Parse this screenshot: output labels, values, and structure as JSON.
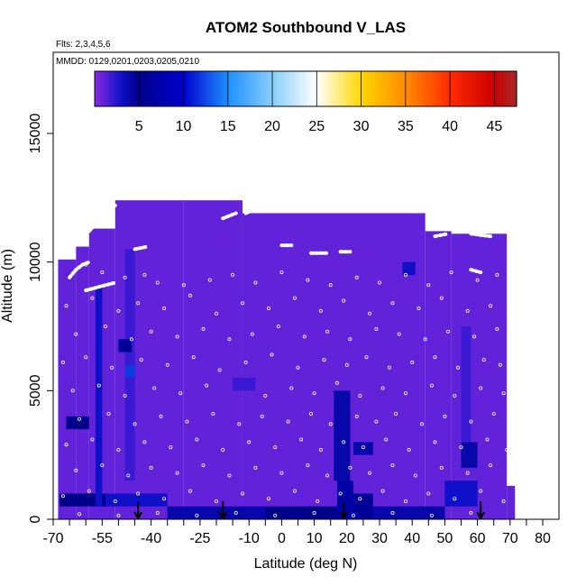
{
  "chart_data": {
    "type": "heatmap",
    "title": "ATOM2 Southbound V_LAS",
    "flights_note": "Flts: 2,3,4,5,6",
    "dates_note": "MMDD: 0129,0201,0203,0205,0210",
    "xlabel": "Latitude (deg N)",
    "ylabel": "Altitude (m)",
    "xlim": [
      -70,
      80
    ],
    "ylim": [
      0,
      18000
    ],
    "x_tick_labels": [
      "-70",
      "-55",
      "-40",
      "-25",
      "-10",
      "0",
      "10",
      "20",
      "30",
      "40",
      "50",
      "60",
      "70",
      "80"
    ],
    "x_tick_values": [
      -70,
      -55,
      -40,
      -25,
      -10,
      0,
      10,
      20,
      30,
      40,
      50,
      60,
      70,
      80
    ],
    "y_tick_labels": [
      "0",
      "5000",
      "10000",
      "15000"
    ],
    "y_tick_values": [
      0,
      5000,
      10000,
      15000
    ],
    "colorbar": {
      "range": [
        0,
        47.5
      ],
      "tick_labels": [
        "5",
        "10",
        "15",
        "20",
        "25",
        "30",
        "35",
        "40",
        "45"
      ],
      "tick_values": [
        5,
        10,
        15,
        20,
        25,
        30,
        35,
        40,
        45
      ],
      "stops": [
        {
          "v": 0,
          "color": "#8a2be2"
        },
        {
          "v": 3,
          "color": "#1010c8"
        },
        {
          "v": 5,
          "color": "#00008b"
        },
        {
          "v": 10,
          "color": "#0000cd"
        },
        {
          "v": 15,
          "color": "#1e90ff"
        },
        {
          "v": 20,
          "color": "#87cefa"
        },
        {
          "v": 25,
          "color": "#ffffff"
        },
        {
          "v": 30,
          "color": "#ffd700"
        },
        {
          "v": 35,
          "color": "#ff8c00"
        },
        {
          "v": 40,
          "color": "#ff2a00"
        },
        {
          "v": 45,
          "color": "#cc0000"
        },
        {
          "v": 47.5,
          "color": "#a52a2a"
        }
      ]
    },
    "background_value": 1,
    "coverage_segments": [
      {
        "x0": -68.5,
        "x1": -63,
        "y_top": 10100
      },
      {
        "x0": -63,
        "x1": -59,
        "y_top": 10600
      },
      {
        "x0": -59,
        "x1": -51,
        "y_top": 11300
      },
      {
        "x0": -51,
        "x1": -30,
        "y_top": 12400
      },
      {
        "x0": -30,
        "x1": -12,
        "y_top": 12400
      },
      {
        "x0": -12,
        "x1": 44,
        "y_top": 11900
      },
      {
        "x0": 44,
        "x1": 52,
        "y_top": 11200
      },
      {
        "x0": 52,
        "x1": 69,
        "y_top": 11100
      },
      {
        "x0": 69,
        "x1": 71.5,
        "y_top": 1300
      }
    ],
    "cells": [
      {
        "x0": -68,
        "x1": -54,
        "y0": 500,
        "y1": 1000,
        "v": 5
      },
      {
        "x0": -54,
        "x1": -35,
        "y0": 500,
        "y1": 1000,
        "v": 3
      },
      {
        "x0": -35,
        "x1": -5,
        "y0": 0,
        "y1": 500,
        "v": 4
      },
      {
        "x0": -5,
        "x1": 17,
        "y0": 0,
        "y1": 500,
        "v": 5
      },
      {
        "x0": 17,
        "x1": 22,
        "y0": 0,
        "y1": 1500,
        "v": 7
      },
      {
        "x0": 22,
        "x1": 28,
        "y0": 0,
        "y1": 1000,
        "v": 6
      },
      {
        "x0": 28,
        "x1": 50,
        "y0": 0,
        "y1": 500,
        "v": 4
      },
      {
        "x0": 50,
        "x1": 60,
        "y0": 500,
        "y1": 1500,
        "v": 3
      },
      {
        "x0": -57,
        "x1": -55,
        "y0": 500,
        "y1": 9000,
        "v": 3
      },
      {
        "x0": -48,
        "x1": -45,
        "y0": 1500,
        "y1": 10500,
        "v": 2
      },
      {
        "x0": -66,
        "x1": -59,
        "y0": 3500,
        "y1": 4000,
        "v": 5
      },
      {
        "x0": -48,
        "x1": -45,
        "y0": 5500,
        "y1": 6000,
        "v": 12
      },
      {
        "x0": -50,
        "x1": -46,
        "y0": 6500,
        "y1": 7000,
        "v": 6
      },
      {
        "x0": -15,
        "x1": -8,
        "y0": 5000,
        "y1": 5500,
        "v": 2
      },
      {
        "x0": 16,
        "x1": 21,
        "y0": 1500,
        "y1": 5000,
        "v": 4
      },
      {
        "x0": 22,
        "x1": 28,
        "y0": 2500,
        "y1": 3000,
        "v": 4
      },
      {
        "x0": 55,
        "x1": 60,
        "y0": 2000,
        "y1": 3000,
        "v": 4
      },
      {
        "x0": 55,
        "x1": 58,
        "y0": 3000,
        "y1": 7500,
        "v": 2
      },
      {
        "x0": 37,
        "x1": 41,
        "y0": 9500,
        "y1": 10000,
        "v": 3
      }
    ],
    "circles": [
      {
        "x": -60,
        "y": 9900
      },
      {
        "x": -55,
        "y": 9600
      },
      {
        "x": -48,
        "y": 9400
      },
      {
        "x": -42,
        "y": 9500
      },
      {
        "x": -38,
        "y": 9200
      },
      {
        "x": -30,
        "y": 9100
      },
      {
        "x": -22,
        "y": 9300
      },
      {
        "x": -15,
        "y": 9500
      },
      {
        "x": -8,
        "y": 9200
      },
      {
        "x": 0,
        "y": 9600
      },
      {
        "x": 8,
        "y": 9300
      },
      {
        "x": 15,
        "y": 9100
      },
      {
        "x": 23,
        "y": 9400
      },
      {
        "x": 30,
        "y": 9200
      },
      {
        "x": 38,
        "y": 9500
      },
      {
        "x": 45,
        "y": 9100
      },
      {
        "x": 52,
        "y": 9600
      },
      {
        "x": 60,
        "y": 9300
      },
      {
        "x": 66,
        "y": 9500
      },
      {
        "x": -66,
        "y": 8300
      },
      {
        "x": -58,
        "y": 8600
      },
      {
        "x": -50,
        "y": 8100
      },
      {
        "x": -44,
        "y": 8400
      },
      {
        "x": -36,
        "y": 8200
      },
      {
        "x": -28,
        "y": 8700
      },
      {
        "x": -20,
        "y": 8000
      },
      {
        "x": -12,
        "y": 8400
      },
      {
        "x": -4,
        "y": 8200
      },
      {
        "x": 4,
        "y": 8600
      },
      {
        "x": 12,
        "y": 8100
      },
      {
        "x": 19,
        "y": 8500
      },
      {
        "x": 27,
        "y": 8000
      },
      {
        "x": 34,
        "y": 8400
      },
      {
        "x": 42,
        "y": 8200
      },
      {
        "x": 49,
        "y": 8600
      },
      {
        "x": 57,
        "y": 8100
      },
      {
        "x": 64,
        "y": 8300
      },
      {
        "x": -63,
        "y": 7200
      },
      {
        "x": -54,
        "y": 7500
      },
      {
        "x": -46,
        "y": 7000
      },
      {
        "x": -40,
        "y": 7300
      },
      {
        "x": -32,
        "y": 7100
      },
      {
        "x": -24,
        "y": 7400
      },
      {
        "x": -16,
        "y": 7000
      },
      {
        "x": -9,
        "y": 7200
      },
      {
        "x": -1,
        "y": 7500
      },
      {
        "x": 7,
        "y": 7100
      },
      {
        "x": 14,
        "y": 7300
      },
      {
        "x": 21,
        "y": 7000
      },
      {
        "x": 29,
        "y": 7400
      },
      {
        "x": 36,
        "y": 7200
      },
      {
        "x": 44,
        "y": 7000
      },
      {
        "x": 51,
        "y": 7300
      },
      {
        "x": 59,
        "y": 7100
      },
      {
        "x": 66,
        "y": 7400
      },
      {
        "x": -67,
        "y": 6100
      },
      {
        "x": -60,
        "y": 6300
      },
      {
        "x": -52,
        "y": 5900
      },
      {
        "x": -43,
        "y": 6200
      },
      {
        "x": -35,
        "y": 6000
      },
      {
        "x": -27,
        "y": 6300
      },
      {
        "x": -19,
        "y": 5800
      },
      {
        "x": -11,
        "y": 6100
      },
      {
        "x": -3,
        "y": 6400
      },
      {
        "x": 5,
        "y": 5900
      },
      {
        "x": 13,
        "y": 6200
      },
      {
        "x": 20,
        "y": 6000
      },
      {
        "x": 26,
        "y": 6300
      },
      {
        "x": 33,
        "y": 5900
      },
      {
        "x": 40,
        "y": 6100
      },
      {
        "x": 47,
        "y": 6300
      },
      {
        "x": 54,
        "y": 5900
      },
      {
        "x": 62,
        "y": 6200
      },
      {
        "x": 67,
        "y": 6000
      },
      {
        "x": -64,
        "y": 5000
      },
      {
        "x": -56,
        "y": 5200
      },
      {
        "x": -48,
        "y": 4800
      },
      {
        "x": -39,
        "y": 5100
      },
      {
        "x": -31,
        "y": 4900
      },
      {
        "x": -23,
        "y": 5200
      },
      {
        "x": -5,
        "y": 4800
      },
      {
        "x": 3,
        "y": 5100
      },
      {
        "x": 10,
        "y": 4900
      },
      {
        "x": 17,
        "y": 5300
      },
      {
        "x": 24,
        "y": 4800
      },
      {
        "x": 31,
        "y": 5100
      },
      {
        "x": 38,
        "y": 4900
      },
      {
        "x": 46,
        "y": 5200
      },
      {
        "x": 53,
        "y": 4800
      },
      {
        "x": 61,
        "y": 5100
      },
      {
        "x": 68,
        "y": 4900
      },
      {
        "x": -62,
        "y": 3900
      },
      {
        "x": -53,
        "y": 4100
      },
      {
        "x": -45,
        "y": 3700
      },
      {
        "x": -37,
        "y": 4000
      },
      {
        "x": -29,
        "y": 3800
      },
      {
        "x": -21,
        "y": 4100
      },
      {
        "x": -13,
        "y": 3700
      },
      {
        "x": -6,
        "y": 4000
      },
      {
        "x": 2,
        "y": 3800
      },
      {
        "x": 9,
        "y": 4100
      },
      {
        "x": 15,
        "y": 3700
      },
      {
        "x": 23,
        "y": 4000
      },
      {
        "x": 29,
        "y": 3800
      },
      {
        "x": 35,
        "y": 4100
      },
      {
        "x": 43,
        "y": 3700
      },
      {
        "x": 50,
        "y": 4000
      },
      {
        "x": 58,
        "y": 3800
      },
      {
        "x": 65,
        "y": 4100
      },
      {
        "x": -66,
        "y": 2900
      },
      {
        "x": -58,
        "y": 3100
      },
      {
        "x": -50,
        "y": 2700
      },
      {
        "x": -42,
        "y": 3000
      },
      {
        "x": -34,
        "y": 2800
      },
      {
        "x": -26,
        "y": 3100
      },
      {
        "x": -18,
        "y": 2700
      },
      {
        "x": -10,
        "y": 3000
      },
      {
        "x": -2,
        "y": 2800
      },
      {
        "x": 6,
        "y": 3100
      },
      {
        "x": 12,
        "y": 2700
      },
      {
        "x": 19,
        "y": 3000
      },
      {
        "x": 25,
        "y": 2800
      },
      {
        "x": 32,
        "y": 3100
      },
      {
        "x": 39,
        "y": 2700
      },
      {
        "x": 47,
        "y": 3000
      },
      {
        "x": 55,
        "y": 2800
      },
      {
        "x": 63,
        "y": 3100
      },
      {
        "x": 69,
        "y": 2700
      },
      {
        "x": -63,
        "y": 1900
      },
      {
        "x": -55,
        "y": 2100
      },
      {
        "x": -47,
        "y": 1700
      },
      {
        "x": -40,
        "y": 2000
      },
      {
        "x": -32,
        "y": 1800
      },
      {
        "x": -24,
        "y": 2100
      },
      {
        "x": -16,
        "y": 1700
      },
      {
        "x": -8,
        "y": 2000
      },
      {
        "x": 0,
        "y": 1800
      },
      {
        "x": 8,
        "y": 2100
      },
      {
        "x": 14,
        "y": 1700
      },
      {
        "x": 21,
        "y": 2000
      },
      {
        "x": 27,
        "y": 1800
      },
      {
        "x": 34,
        "y": 2100
      },
      {
        "x": 41,
        "y": 1700
      },
      {
        "x": 49,
        "y": 2000
      },
      {
        "x": 57,
        "y": 1800
      },
      {
        "x": 64,
        "y": 2100
      },
      {
        "x": -67,
        "y": 900
      },
      {
        "x": -59,
        "y": 1100
      },
      {
        "x": -51,
        "y": 700
      },
      {
        "x": -44,
        "y": 1000
      },
      {
        "x": -36,
        "y": 800
      },
      {
        "x": -28,
        "y": 1100
      },
      {
        "x": -20,
        "y": 700
      },
      {
        "x": -12,
        "y": 1000
      },
      {
        "x": -4,
        "y": 800
      },
      {
        "x": 4,
        "y": 1100
      },
      {
        "x": 11,
        "y": 700
      },
      {
        "x": 18,
        "y": 1000
      },
      {
        "x": 24,
        "y": 800
      },
      {
        "x": 31,
        "y": 1100
      },
      {
        "x": 38,
        "y": 700
      },
      {
        "x": 45,
        "y": 1000
      },
      {
        "x": 53,
        "y": 800
      },
      {
        "x": 61,
        "y": 1100
      },
      {
        "x": 68,
        "y": 700
      },
      {
        "x": -62,
        "y": 200
      },
      {
        "x": -50,
        "y": 150
      },
      {
        "x": -38,
        "y": 250
      },
      {
        "x": -26,
        "y": 150
      },
      {
        "x": -14,
        "y": 250
      },
      {
        "x": -2,
        "y": 150
      },
      {
        "x": 10,
        "y": 250
      },
      {
        "x": 22,
        "y": 150
      },
      {
        "x": 34,
        "y": 250
      },
      {
        "x": 46,
        "y": 150
      },
      {
        "x": 58,
        "y": 250
      }
    ],
    "flight_tracks": [
      [
        [
          -65,
          9400
        ],
        [
          -63,
          9700
        ],
        [
          -61,
          9900
        ],
        [
          -59,
          10000
        ]
      ],
      [
        [
          -60,
          8900
        ],
        [
          -57,
          9000
        ],
        [
          -54,
          9100
        ],
        [
          -51,
          9200
        ]
      ],
      [
        [
          -59,
          11200
        ],
        [
          -56,
          11600
        ],
        [
          -53,
          12000
        ],
        [
          -51,
          12200
        ]
      ],
      [
        [
          -45,
          10500
        ],
        [
          -41,
          10600
        ]
      ],
      [
        [
          -18,
          11700
        ],
        [
          -14,
          11900
        ]
      ],
      [
        [
          -11,
          11900
        ],
        [
          -9,
          12000
        ]
      ],
      [
        [
          0,
          10650
        ],
        [
          3,
          10650
        ]
      ],
      [
        [
          9,
          10350
        ],
        [
          14,
          10350
        ]
      ],
      [
        [
          18,
          10400
        ],
        [
          21,
          10400
        ]
      ],
      [
        [
          47,
          11000
        ],
        [
          51,
          11100
        ]
      ],
      [
        [
          58,
          11100
        ],
        [
          64,
          11000
        ]
      ],
      [
        [
          58,
          9700
        ],
        [
          61,
          9600
        ]
      ]
    ],
    "arrows": [
      {
        "x": -44,
        "y_top": 700
      },
      {
        "x": -18,
        "y_top": 700
      },
      {
        "x": 19,
        "y_top": 700
      },
      {
        "x": 61,
        "y_top": 700
      }
    ]
  }
}
